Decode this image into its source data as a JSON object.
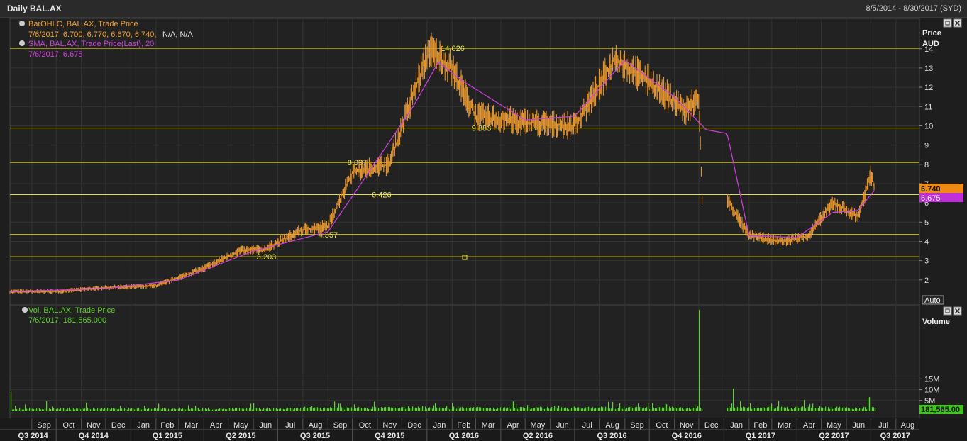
{
  "header": {
    "title": "Daily BAL.AX",
    "date_range": "8/5/2014 - 8/30/2017 (SYD)"
  },
  "legend": {
    "ohlc_title": "BarOHLC, BAL.AX, Trade Price",
    "ohlc_values": "7/6/2017, 6.700, 6.770, 6.670, 6.740,",
    "ohlc_na": "N/A, N/A",
    "sma_title": "SMA, BAL.AX, Trade Price(Last),  20",
    "sma_values": "7/6/2017, 6.675",
    "vol_title": "Vol, BAL.AX, Trade Price",
    "vol_values": "7/6/2017, 181,565.000"
  },
  "axes": {
    "price_header_1": "Price",
    "price_header_2": "AUD",
    "volume_header": "Volume",
    "auto_label": "Auto",
    "last_price_tag": "6.740",
    "sma_tag": "6.675",
    "last_volume_tag": "181,565.00"
  },
  "colors": {
    "price": "#f5a030",
    "sma": "#d040e0",
    "volume": "#5ed62a",
    "fib_lines": "#e8e030",
    "background": "#1e1e1e",
    "grid": "#3a3a3a"
  },
  "chart_data": [
    {
      "type": "line",
      "subtype": "ohlc",
      "series": [
        {
          "name": "BarOHLC, BAL.AX, Trade Price",
          "x": [
            "2014-08-05",
            "2014-10-01",
            "2014-12-01",
            "2015-02-01",
            "2015-04-01",
            "2015-05-15",
            "2015-06-15",
            "2015-08-01",
            "2015-09-01",
            "2015-10-01",
            "2015-11-15",
            "2016-01-04",
            "2016-02-01",
            "2016-03-01",
            "2016-05-01",
            "2016-07-01",
            "2016-08-20",
            "2016-10-01",
            "2016-11-15",
            "2016-12-01",
            "2016-12-05",
            "2017-01-02",
            "2017-02-01",
            "2017-03-15",
            "2017-04-15",
            "2017-05-15",
            "2017-06-15",
            "2017-07-01",
            "2017-07-06"
          ],
          "values": [
            1.4,
            1.4,
            1.6,
            1.7,
            2.6,
            3.5,
            3.6,
            4.6,
            4.8,
            7.6,
            8.0,
            14.0,
            13.0,
            10.5,
            10.2,
            10.0,
            13.5,
            12.3,
            10.8,
            11.5,
            6.3,
            6.4,
            4.3,
            4.0,
            4.3,
            6.0,
            5.3,
            7.4,
            6.74
          ]
        },
        {
          "name": "SMA, BAL.AX, Trade Price(Last),  20",
          "x": [
            "2014-08-05",
            "2014-12-01",
            "2015-03-01",
            "2015-06-01",
            "2015-09-01",
            "2015-10-15",
            "2015-12-15",
            "2016-01-15",
            "2016-02-15",
            "2016-05-01",
            "2016-07-01",
            "2016-09-01",
            "2016-11-01",
            "2016-12-10",
            "2017-01-05",
            "2017-02-01",
            "2017-04-01",
            "2017-05-15",
            "2017-06-15",
            "2017-07-06"
          ],
          "values": [
            1.4,
            1.55,
            2.0,
            3.5,
            4.5,
            7.2,
            11.0,
            13.3,
            12.3,
            10.3,
            10.5,
            13.4,
            11.5,
            9.8,
            9.6,
            4.3,
            4.2,
            5.5,
            5.6,
            6.675
          ]
        }
      ],
      "horizontal_levels": [
        14.026,
        9.883,
        8.097,
        6.426,
        4.357,
        3.203
      ],
      "y_ticks": [
        2,
        3,
        4,
        5,
        6,
        7,
        8,
        9,
        10,
        11,
        12,
        13,
        14
      ],
      "ylim": [
        1,
        15.5
      ],
      "ylabel": "Price AUD",
      "last_value": 6.74,
      "sma_last": 6.675
    },
    {
      "type": "bar",
      "series": [
        {
          "name": "Vol, BAL.AX, Trade Price",
          "x": [
            "2014-08-05",
            "2015-09-15",
            "2016-02-01",
            "2016-04-15",
            "2016-08-25",
            "2016-12-01",
            "2017-01-12",
            "2017-04-20",
            "2017-06-28",
            "2017-07-06"
          ],
          "values": [
            9000000,
            3500000,
            4000000,
            4500000,
            3700000,
            47000000,
            10500000,
            3500000,
            6500000,
            181565
          ]
        }
      ],
      "y_ticks": [
        "5M",
        "10M",
        "15M"
      ],
      "ylim": [
        0,
        48000000
      ],
      "ylabel": "Volume",
      "last_value": 181565
    }
  ],
  "x_axis": {
    "months": [
      "Sep",
      "Oct",
      "Nov",
      "Dec",
      "Jan",
      "Feb",
      "Mar",
      "Apr",
      "May",
      "Jun",
      "Jul",
      "Aug",
      "Sep",
      "Oct",
      "Nov",
      "Dec",
      "Jan",
      "Feb",
      "Mar",
      "Apr",
      "May",
      "Jun",
      "Jul",
      "Aug",
      "Sep",
      "Oct",
      "Nov",
      "Dec",
      "Jan",
      "Feb",
      "Mar",
      "Apr",
      "May",
      "Jun",
      "Jul",
      "Aug"
    ],
    "month_dates": [
      "2014-09-01",
      "2014-10-01",
      "2014-11-01",
      "2014-12-01",
      "2015-01-01",
      "2015-02-01",
      "2015-03-01",
      "2015-04-01",
      "2015-05-01",
      "2015-06-01",
      "2015-07-01",
      "2015-08-01",
      "2015-09-01",
      "2015-10-01",
      "2015-11-01",
      "2015-12-01",
      "2016-01-01",
      "2016-02-01",
      "2016-03-01",
      "2016-04-01",
      "2016-05-01",
      "2016-06-01",
      "2016-07-01",
      "2016-08-01",
      "2016-09-01",
      "2016-10-01",
      "2016-11-01",
      "2016-12-01",
      "2017-01-01",
      "2017-02-01",
      "2017-03-01",
      "2017-04-01",
      "2017-05-01",
      "2017-06-01",
      "2017-07-01",
      "2017-08-01"
    ],
    "quarters": [
      "Q3 2014",
      "Q4 2014",
      "Q1 2015",
      "Q2 2015",
      "Q3 2015",
      "Q4 2015",
      "Q1 2016",
      "Q2 2016",
      "Q3 2016",
      "Q4 2016",
      "Q1 2017",
      "Q2 2017",
      "Q3 2017"
    ]
  }
}
